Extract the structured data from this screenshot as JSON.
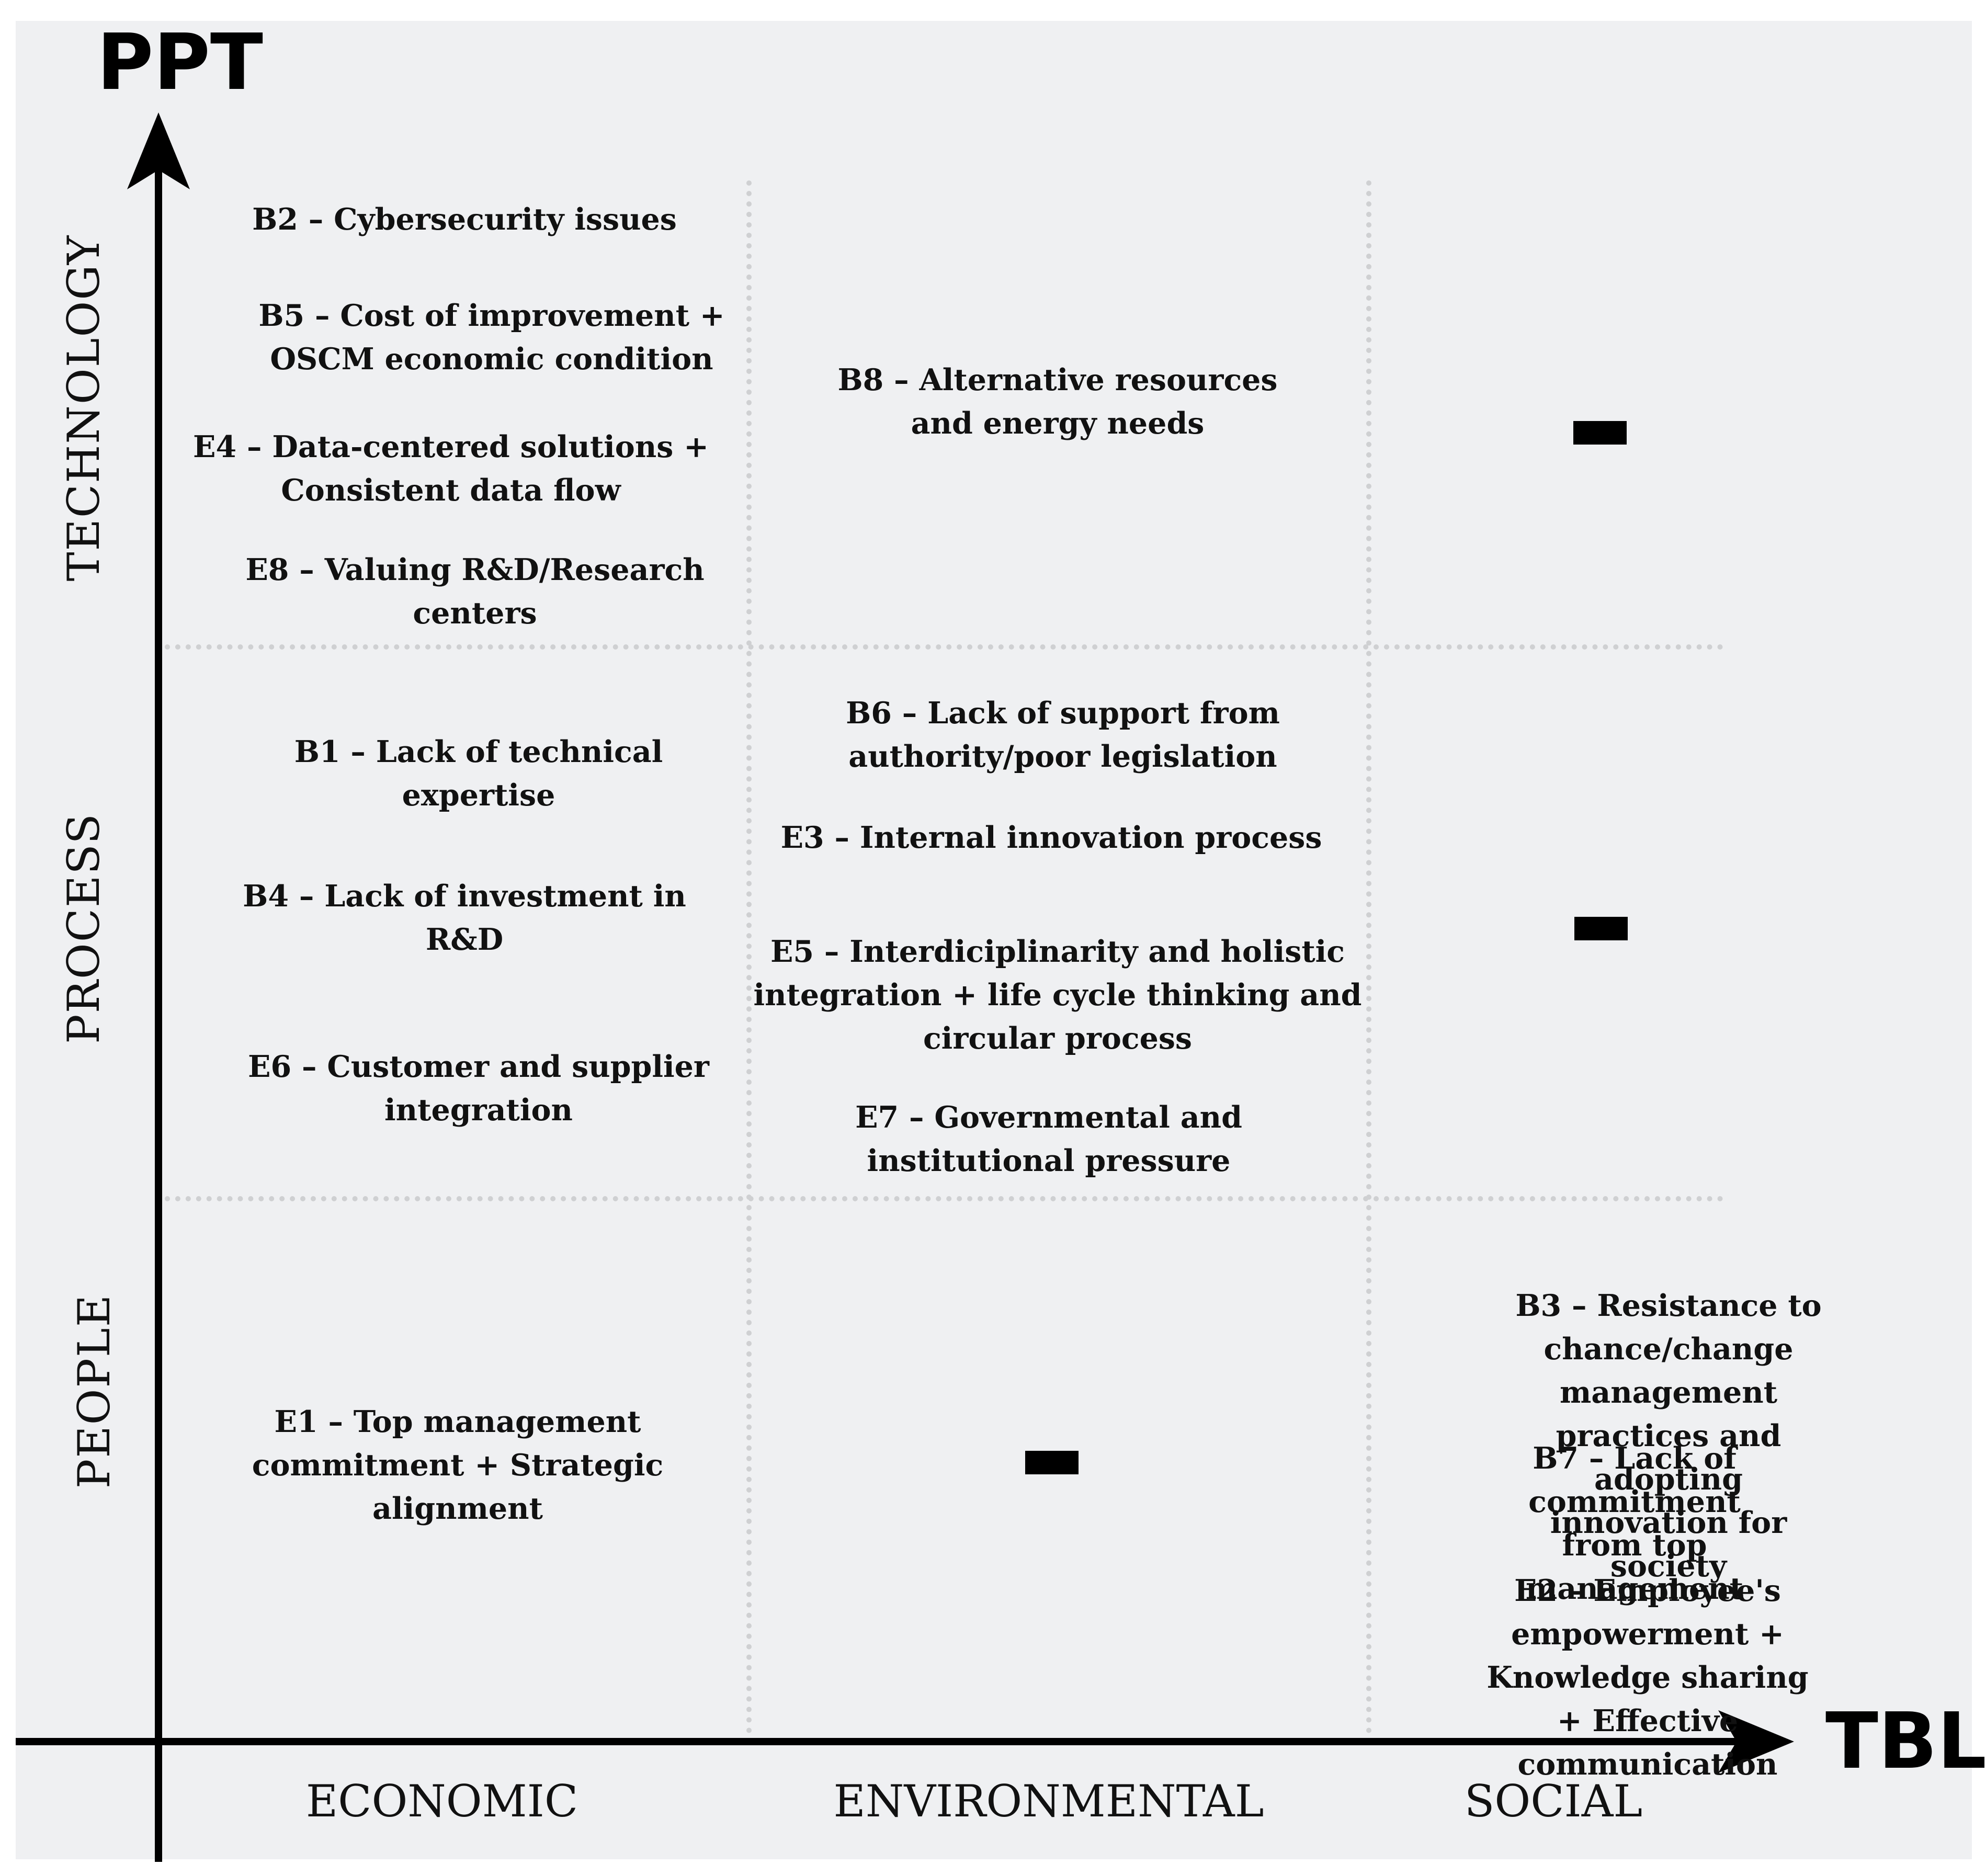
{
  "diagram": {
    "y_axis_title": "PPT",
    "x_axis_title": "TBL",
    "rows": [
      "TECHNOLOGY",
      "PROCESS",
      "PEOPLE"
    ],
    "columns": [
      "ECONOMIC",
      "ENVIRONMENTAL",
      "SOCIAL"
    ],
    "cells": {
      "technology_economic": [
        "B2 – Cybersecurity issues",
        "B5 – Cost of improvement +\nOSCM economic condition",
        "E4 – Data-centered solutions +\nConsistent data flow",
        "E8 – Valuing R&D/Research\ncenters"
      ],
      "technology_environmental": [
        "B8 – Alternative resources\nand energy needs"
      ],
      "technology_social": "—",
      "process_economic": [
        "B1 – Lack of technical\nexpertise",
        "B4 – Lack of investment in\nR&D",
        "E6 – Customer and supplier\nintegration"
      ],
      "process_environmental": [
        "B6 – Lack of support from\nauthority/poor legislation",
        "E3 – Internal innovation process",
        "E5 – Interdiciplinarity and holistic\nintegration + life cycle thinking and\ncircular process",
        "E7 – Governmental and\ninstitutional pressure"
      ],
      "process_social": "—",
      "people_economic": [
        "E1 – Top management\ncommitment + Strategic\nalignment"
      ],
      "people_environmental": "—",
      "people_social": [
        "B3 – Resistance to chance/change\nmanagement practices and\nadopting innovation for society",
        "B7 – Lack of commitment\nfrom top management",
        "E2 – Employee's empowerment +\nKnowledge sharing + Effective\ncommunication"
      ]
    }
  }
}
